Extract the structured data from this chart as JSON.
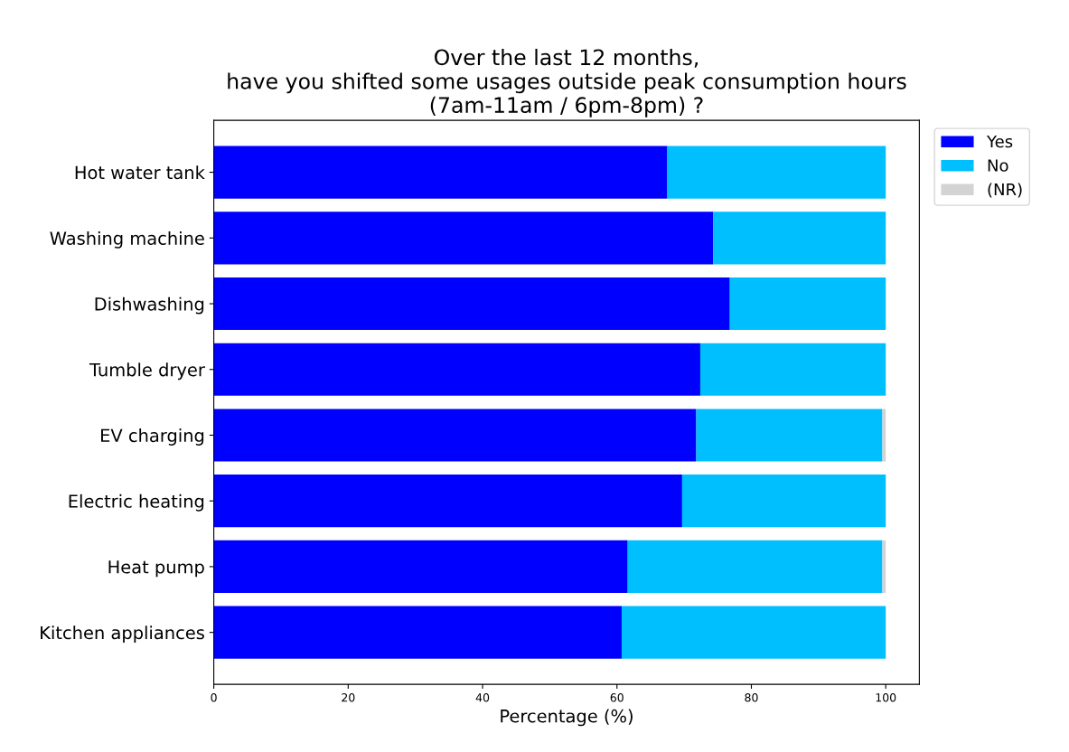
{
  "chart_data": {
    "type": "bar",
    "orientation": "horizontal",
    "stacked": true,
    "title": "Over the last 12 months,\nhave you shifted some usages outside peak consumption hours\n(7am-11am / 6pm-8pm) ?",
    "xlabel": "Percentage (%)",
    "categories": [
      "Hot water tank",
      "Washing machine",
      "Dishwashing",
      "Tumble dryer",
      "EV charging",
      "Electric heating",
      "Heat pump",
      "Kitchen appliances"
    ],
    "series": [
      {
        "name": "Yes",
        "color": "#0000ff",
        "values": [
          67.5,
          74.3,
          76.8,
          72.4,
          71.8,
          69.7,
          61.6,
          60.7
        ]
      },
      {
        "name": "No",
        "color": "#00bfff",
        "values": [
          32.5,
          25.7,
          23.2,
          27.6,
          27.7,
          30.3,
          37.9,
          39.3
        ]
      },
      {
        "name": "(NR)",
        "color": "#d3d3d3",
        "values": [
          0,
          0,
          0,
          0,
          0.5,
          0,
          0.5,
          0
        ]
      }
    ],
    "xlim": [
      0,
      105
    ],
    "xticks": [
      0,
      20,
      40,
      60,
      80,
      100
    ],
    "grid": false,
    "legend": "right"
  }
}
